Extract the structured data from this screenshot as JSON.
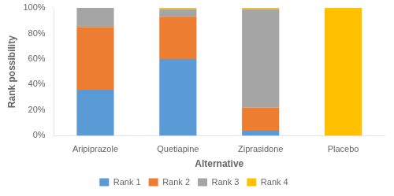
{
  "chart_data": {
    "type": "bar",
    "stacked": true,
    "categories": [
      "Aripiprazole",
      "Quetiapine",
      "Ziprasidone",
      "Placebo"
    ],
    "series": [
      {
        "name": "Rank 1",
        "color": "#5B9BD5",
        "values": [
          36,
          60,
          4,
          0
        ]
      },
      {
        "name": "Rank 2",
        "color": "#ED7D31",
        "values": [
          49,
          33,
          18,
          0
        ]
      },
      {
        "name": "Rank 3",
        "color": "#A5A5A5",
        "values": [
          15,
          6,
          77,
          0
        ]
      },
      {
        "name": "Rank 4",
        "color": "#FFC000",
        "values": [
          0,
          1,
          1,
          100
        ]
      }
    ],
    "xlabel": "Alternative",
    "ylabel": "Rank possibility",
    "ylim": [
      0,
      100
    ],
    "yticks": [
      {
        "value": 0,
        "label": "0%"
      },
      {
        "value": 20,
        "label": "20%"
      },
      {
        "value": 40,
        "label": "40%"
      },
      {
        "value": 60,
        "label": "60%"
      },
      {
        "value": 80,
        "label": "80%"
      },
      {
        "value": 100,
        "label": "100%"
      }
    ],
    "grid": false,
    "legend": "bottom"
  }
}
